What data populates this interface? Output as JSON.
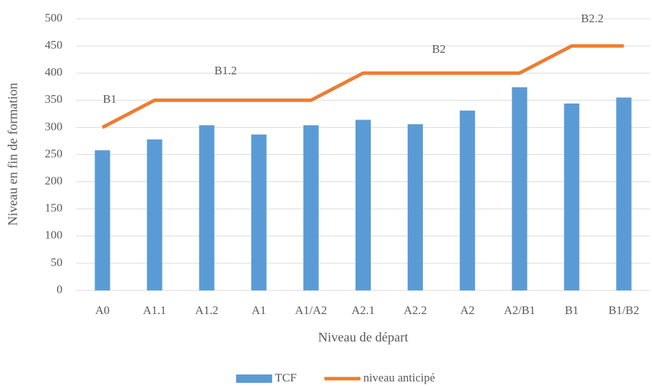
{
  "chart_data": {
    "type": "combo",
    "categories": [
      "A0",
      "A1.1",
      "A1.2",
      "A1",
      "A1/A2",
      "A2.1",
      "A2.2",
      "A2",
      "A2/B1",
      "B1",
      "B1/B2"
    ],
    "series": [
      {
        "name": "TCF",
        "type": "bar",
        "color": "#5b9bd5",
        "values": [
          258,
          278,
          304,
          287,
          304,
          314,
          306,
          331,
          374,
          344,
          355
        ]
      },
      {
        "name": "niveau anticipé",
        "type": "line",
        "color": "#ed7d31",
        "values": [
          300,
          350,
          350,
          350,
          350,
          400,
          400,
          400,
          400,
          450,
          450
        ]
      }
    ],
    "ylim": [
      0,
      500
    ],
    "yticks": [
      0,
      50,
      100,
      150,
      200,
      250,
      300,
      350,
      400,
      450,
      500
    ],
    "grid": true,
    "xlabel": "Niveau de départ",
    "ylabel": "Niveau en fin de formation",
    "annotations": [
      "B1",
      "B1.2",
      "B2",
      "B2.2"
    ],
    "legend": "bottom"
  }
}
